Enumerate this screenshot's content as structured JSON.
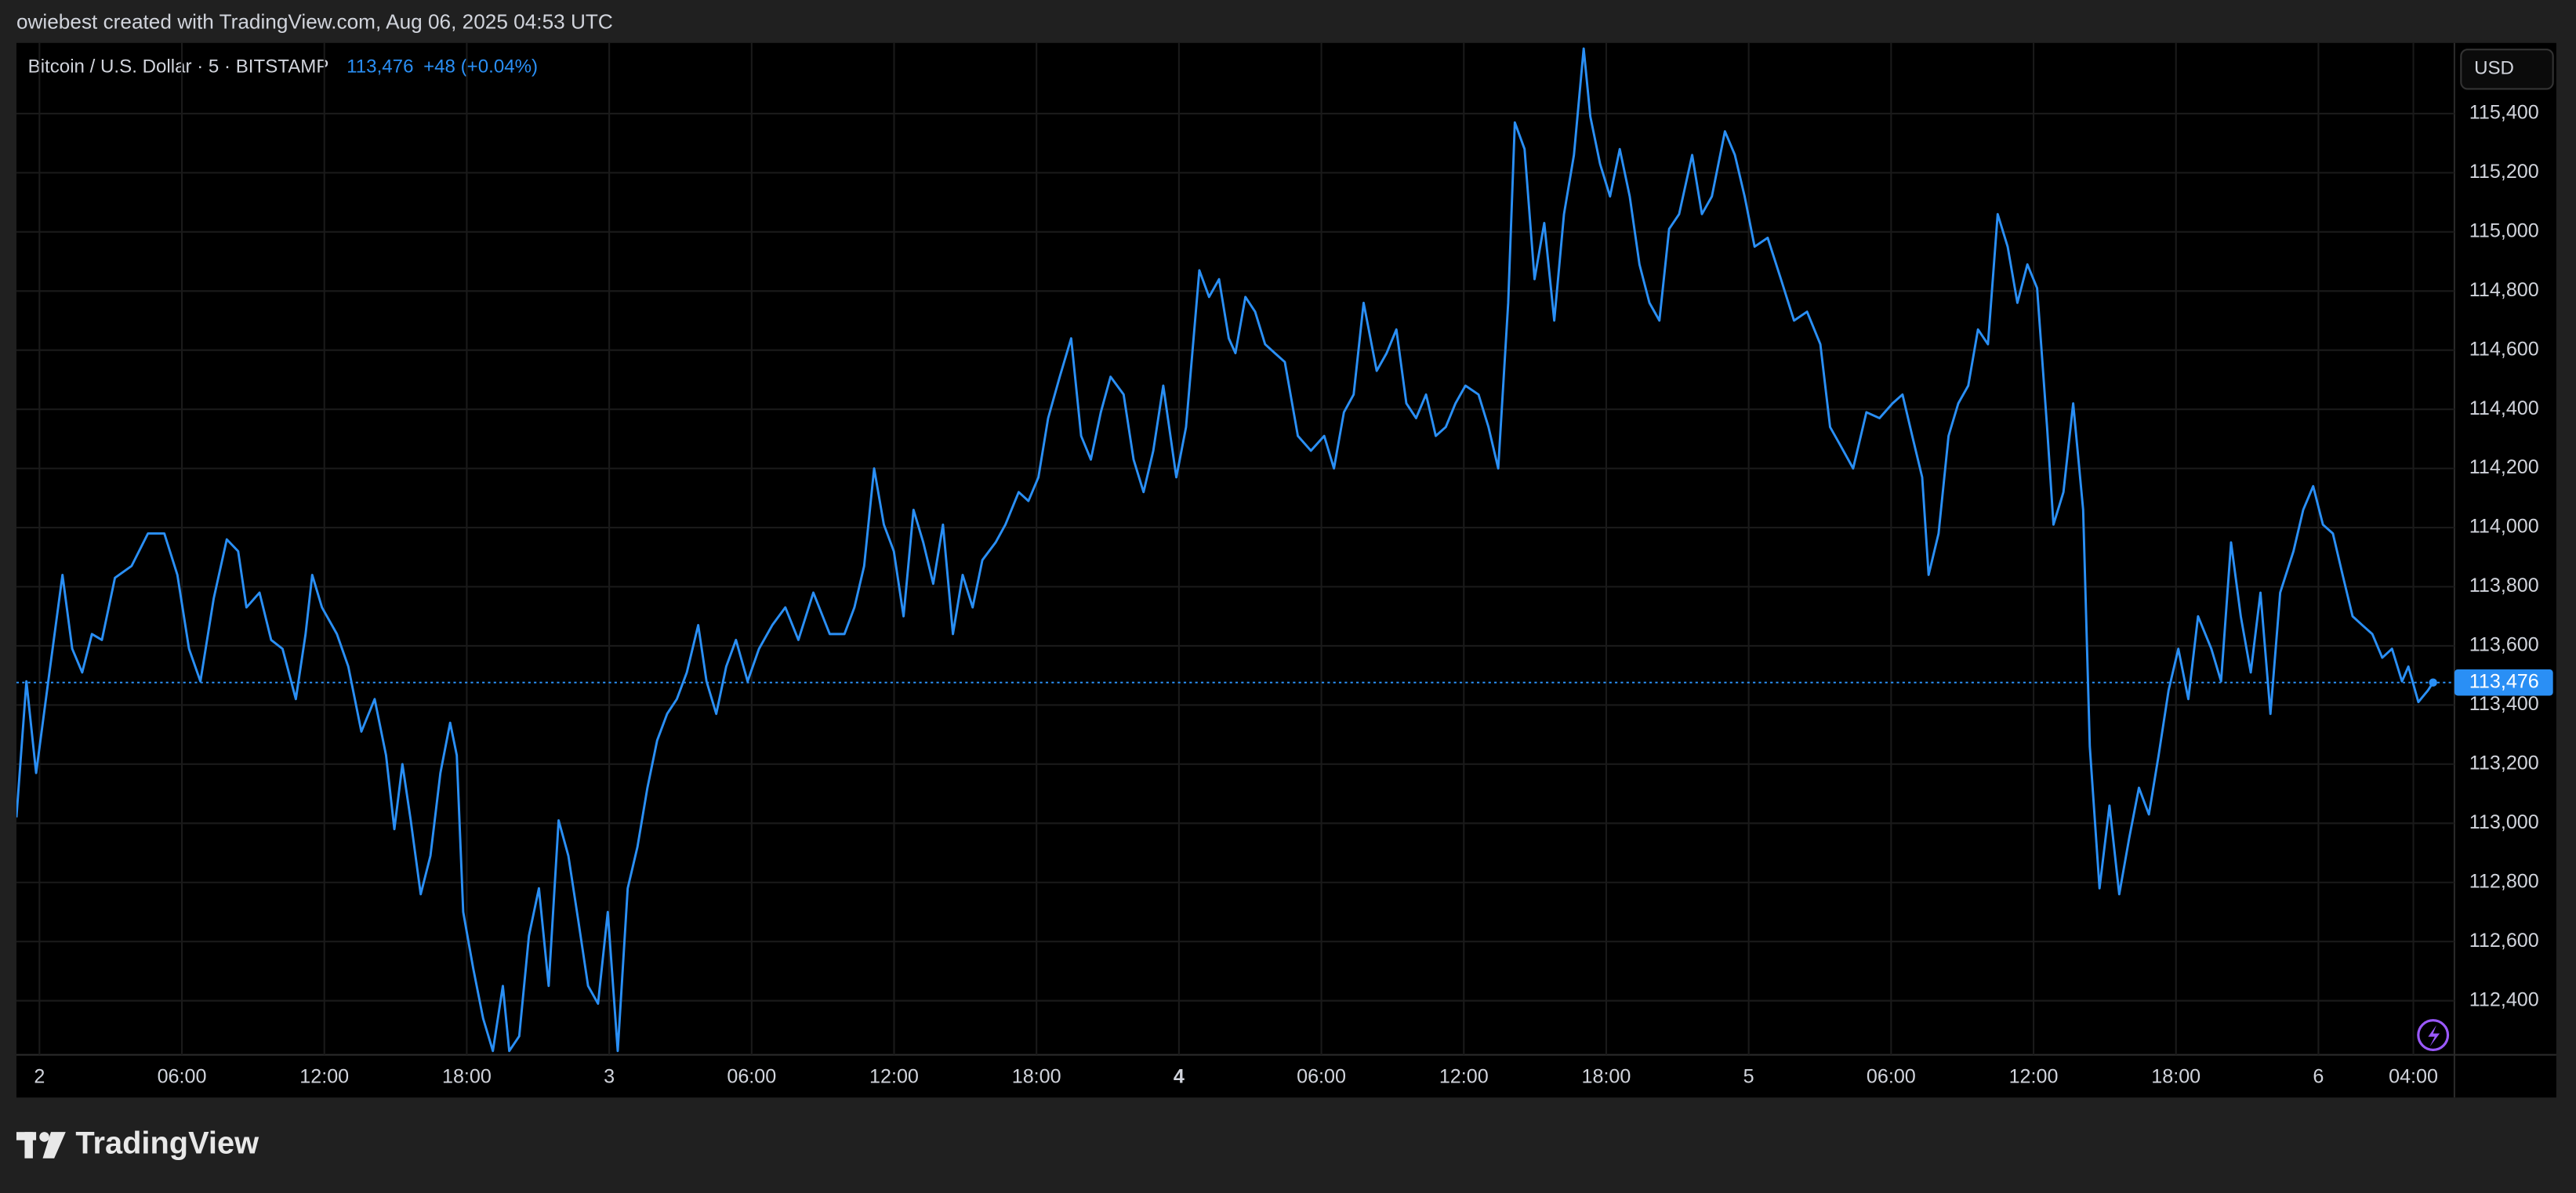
{
  "credit": "owiebest created with TradingView.com, Aug 06, 2025 04:53 UTC",
  "brand": "TradingView",
  "chart_data": {
    "type": "line",
    "title": "Bitcoin / U.S. Dollar · 5 · BITSTAMP",
    "change": "+48 (+0.04%)",
    "currency": "USD",
    "color": "#2a8ff5",
    "grid": true,
    "last_price_tick": {
      "value": 113476,
      "label": "113,476"
    },
    "xlim": [
      -0.97,
      101.73
    ],
    "ylim": [
      112217,
      115639
    ],
    "xticks": [
      {
        "value": 0,
        "label": "2"
      },
      {
        "value": 6,
        "label": "06:00"
      },
      {
        "value": 12,
        "label": "12:00"
      },
      {
        "value": 18,
        "label": "18:00"
      },
      {
        "value": 24,
        "label": "3"
      },
      {
        "value": 30,
        "label": "06:00"
      },
      {
        "value": 36,
        "label": "12:00"
      },
      {
        "value": 42,
        "label": "18:00"
      },
      {
        "value": 48,
        "label": "4"
      },
      {
        "value": 54,
        "label": "06:00"
      },
      {
        "value": 60,
        "label": "12:00"
      },
      {
        "value": 66,
        "label": "18:00"
      },
      {
        "value": 72,
        "label": "5"
      },
      {
        "value": 78,
        "label": "06:00"
      },
      {
        "value": 84,
        "label": "12:00"
      },
      {
        "value": 90,
        "label": "18:00"
      },
      {
        "value": 96,
        "label": "6"
      },
      {
        "value": 100,
        "label": "04:00"
      }
    ],
    "yticks": [
      {
        "value": 112400,
        "label": "112,400"
      },
      {
        "value": 112600,
        "label": "112,600"
      },
      {
        "value": 112800,
        "label": "112,800"
      },
      {
        "value": 113000,
        "label": "113,000"
      },
      {
        "value": 113200,
        "label": "113,200"
      },
      {
        "value": 113400,
        "label": "113,400"
      },
      {
        "value": 113600,
        "label": "113,600"
      },
      {
        "value": 113800,
        "label": "113,800"
      },
      {
        "value": 114000,
        "label": "114,000"
      },
      {
        "value": 114200,
        "label": "114,200"
      },
      {
        "value": 114400,
        "label": "114,400"
      },
      {
        "value": 114600,
        "label": "114,600"
      },
      {
        "value": 114800,
        "label": "114,800"
      },
      {
        "value": 115000,
        "label": "115,000"
      },
      {
        "value": 115200,
        "label": "115,200"
      },
      {
        "value": 115400,
        "label": "115,400"
      }
    ],
    "x": [
      -0.97,
      -0.55,
      -0.14,
      0.42,
      0.97,
      1.38,
      1.8,
      2.21,
      2.63,
      3.18,
      3.88,
      4.57,
      5.26,
      5.81,
      6.3,
      6.78,
      7.34,
      7.89,
      8.37,
      8.72,
      9.27,
      9.76,
      10.24,
      10.8,
      11.21,
      11.49,
      11.9,
      12.53,
      13.01,
      13.56,
      14.12,
      14.6,
      14.95,
      15.29,
      15.64,
      16.06,
      16.47,
      16.89,
      17.3,
      17.58,
      17.85,
      18.27,
      18.69,
      19.1,
      19.52,
      19.79,
      20.21,
      20.62,
      21.04,
      21.45,
      21.87,
      22.28,
      22.7,
      23.11,
      23.53,
      23.94,
      24.36,
      24.78,
      25.19,
      25.61,
      26.02,
      26.44,
      26.85,
      27.27,
      27.75,
      28.1,
      28.51,
      28.93,
      29.34,
      29.83,
      30.31,
      30.87,
      31.42,
      31.97,
      32.6,
      33.29,
      33.91,
      34.33,
      34.74,
      35.16,
      35.57,
      35.99,
      36.4,
      36.82,
      37.23,
      37.65,
      38.06,
      38.48,
      38.89,
      39.31,
      39.72,
      40.28,
      40.69,
      41.25,
      41.66,
      42.08,
      42.49,
      42.98,
      43.46,
      43.88,
      44.29,
      44.71,
      45.12,
      45.67,
      46.09,
      46.51,
      46.92,
      47.34,
      47.89,
      48.3,
      48.86,
      49.27,
      49.69,
      50.1,
      50.38,
      50.8,
      51.21,
      51.63,
      52.04,
      52.46,
      53.01,
      53.56,
      54.12,
      54.53,
      54.95,
      55.36,
      55.78,
      56.33,
      56.75,
      57.16,
      57.58,
      57.99,
      58.41,
      58.82,
      59.24,
      59.65,
      60.07,
      60.62,
      61.04,
      61.45,
      61.87,
      62.15,
      62.56,
      62.98,
      63.39,
      63.81,
      64.22,
      64.64,
      65.05,
      65.33,
      65.74,
      66.16,
      66.57,
      66.99,
      67.4,
      67.82,
      68.24,
      68.65,
      69.07,
      69.62,
      70.03,
      70.45,
      71.0,
      71.42,
      71.83,
      72.25,
      72.8,
      73.36,
      73.91,
      74.46,
      75.02,
      75.43,
      75.85,
      76.4,
      76.96,
      77.51,
      78.06,
      78.48,
      78.89,
      79.31,
      79.58,
      80.0,
      80.42,
      80.83,
      81.25,
      81.66,
      82.08,
      82.49,
      82.91,
      83.32,
      83.74,
      84.15,
      84.57,
      84.84,
      85.26,
      85.67,
      86.09,
      86.37,
      86.78,
      87.2,
      87.61,
      88.03,
      88.44,
      88.86,
      89.27,
      89.69,
      90.1,
      90.52,
      90.93,
      91.49,
      91.9,
      92.32,
      92.73,
      93.15,
      93.56,
      93.98,
      94.39,
      94.95,
      95.36,
      95.78,
      96.19,
      96.61,
      97.02,
      97.44,
      97.85,
      98.27,
      98.69,
      99.1,
      99.52,
      99.79,
      100.21,
      100.62,
      100.83
    ],
    "values": [
      113020,
      113480,
      113170,
      113510,
      113840,
      113590,
      113510,
      113640,
      113620,
      113830,
      113870,
      113980,
      113980,
      113840,
      113590,
      113480,
      113760,
      113960,
      113920,
      113730,
      113780,
      113620,
      113590,
      113420,
      113640,
      113840,
      113730,
      113640,
      113530,
      113310,
      113420,
      113230,
      112980,
      113200,
      113010,
      112760,
      112890,
      113170,
      113340,
      113230,
      112700,
      112510,
      112340,
      112230,
      112450,
      112230,
      112280,
      112620,
      112780,
      112450,
      113010,
      112890,
      112670,
      112450,
      112390,
      112700,
      112230,
      112780,
      112920,
      113120,
      113280,
      113370,
      113420,
      113510,
      113670,
      113480,
      113370,
      113530,
      113620,
      113480,
      113590,
      113670,
      113730,
      113620,
      113780,
      113640,
      113640,
      113730,
      113870,
      114200,
      114010,
      113920,
      113700,
      114060,
      113950,
      113810,
      114010,
      113640,
      113840,
      113730,
      113890,
      113950,
      114010,
      114120,
      114090,
      114170,
      114370,
      114510,
      114640,
      114310,
      114230,
      114390,
      114510,
      114450,
      114230,
      114120,
      114260,
      114480,
      114170,
      114340,
      114870,
      114780,
      114840,
      114640,
      114590,
      114780,
      114730,
      114620,
      114590,
      114560,
      114310,
      114260,
      114310,
      114200,
      114390,
      114450,
      114760,
      114530,
      114590,
      114670,
      114420,
      114370,
      114450,
      114310,
      114340,
      114420,
      114480,
      114450,
      114340,
      114200,
      114760,
      115370,
      115280,
      114840,
      115030,
      114700,
      115060,
      115260,
      115620,
      115390,
      115230,
      115120,
      115280,
      115120,
      114890,
      114760,
      114700,
      115010,
      115060,
      115260,
      115060,
      115120,
      115340,
      115260,
      115120,
      114950,
      114980,
      114840,
      114700,
      114730,
      114620,
      114340,
      114280,
      114200,
      114390,
      114370,
      114420,
      114450,
      114310,
      114170,
      113840,
      113980,
      114310,
      114420,
      114480,
      114670,
      114620,
      115060,
      114950,
      114760,
      114890,
      114810,
      114340,
      114010,
      114120,
      114420,
      114060,
      113260,
      112780,
      113060,
      112760,
      112950,
      113120,
      113030,
      113230,
      113450,
      113590,
      113420,
      113700,
      113590,
      113480,
      113950,
      113700,
      113510,
      113780,
      113370,
      113780,
      113920,
      114060,
      114140,
      114010,
      113980,
      113840,
      113700,
      113670,
      113640,
      113560,
      113590,
      113480,
      113530,
      113410,
      113450,
      113476
    ]
  }
}
